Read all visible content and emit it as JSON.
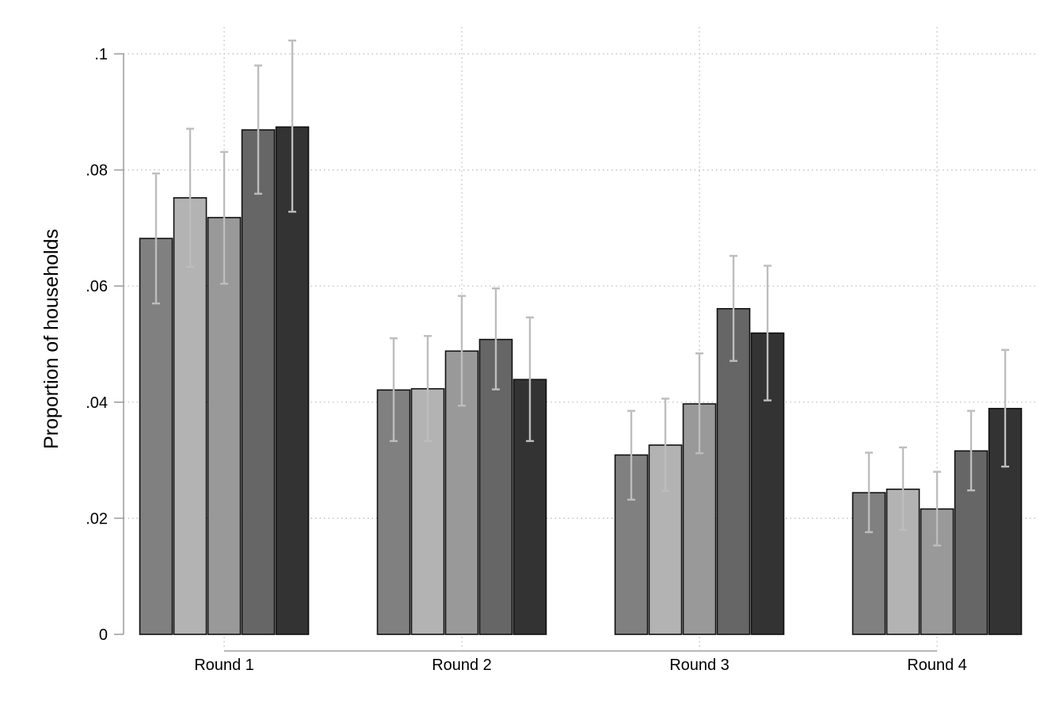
{
  "chart_data": {
    "type": "bar",
    "title": "",
    "xlabel": "",
    "ylabel": "Proportion of households",
    "ylim": [
      0,
      0.1
    ],
    "yticks": [
      0,
      0.02,
      0.04,
      0.06,
      0.08,
      0.1
    ],
    "ytick_labels": [
      "0",
      ".02",
      ".04",
      ".06",
      ".08",
      ".1"
    ],
    "grid": true,
    "categories": [
      "Round 1",
      "Round 2",
      "Round 3",
      "Round 4"
    ],
    "series": [
      {
        "color": "#808080",
        "values": [
          0.0682,
          0.0421,
          0.0309,
          0.0244
        ],
        "ci_low": [
          0.057,
          0.0333,
          0.0232,
          0.0176
        ],
        "ci_high": [
          0.0794,
          0.051,
          0.0385,
          0.0313
        ]
      },
      {
        "color": "#b3b3b3",
        "values": [
          0.0752,
          0.0423,
          0.0326,
          0.025
        ],
        "ci_low": [
          0.0633,
          0.0333,
          0.0247,
          0.018
        ],
        "ci_high": [
          0.0871,
          0.0514,
          0.0406,
          0.0322
        ]
      },
      {
        "color": "#999999",
        "values": [
          0.0718,
          0.0488,
          0.0397,
          0.0216
        ],
        "ci_low": [
          0.0604,
          0.0394,
          0.0312,
          0.0153
        ],
        "ci_high": [
          0.0831,
          0.0583,
          0.0484,
          0.028
        ]
      },
      {
        "color": "#666666",
        "values": [
          0.0869,
          0.0508,
          0.0561,
          0.0316
        ],
        "ci_low": [
          0.0759,
          0.0422,
          0.0471,
          0.0248
        ],
        "ci_high": [
          0.098,
          0.0596,
          0.0652,
          0.0385
        ]
      },
      {
        "color": "#333333",
        "values": [
          0.0874,
          0.0439,
          0.0519,
          0.0389
        ],
        "ci_low": [
          0.0728,
          0.0333,
          0.0403,
          0.0289
        ],
        "ci_high": [
          0.1023,
          0.0546,
          0.0635,
          0.049
        ]
      }
    ]
  }
}
